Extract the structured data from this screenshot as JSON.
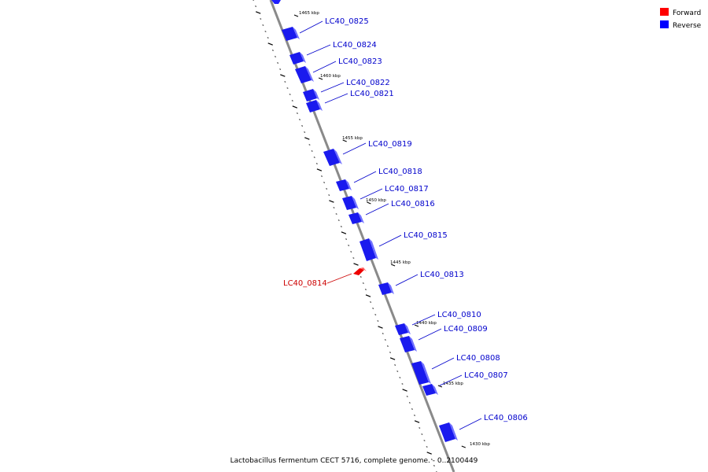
{
  "legend": {
    "forward": {
      "label": "Forward",
      "color": "#ff0000"
    },
    "reverse": {
      "label": "Reverse",
      "color": "#0000ff"
    }
  },
  "caption": "Lactobacillus fermentum CECT 5716, complete genome. - 0..2100449",
  "kbp_marks": [
    "1465 kbp",
    "1460 kbp",
    "1455 kbp",
    "1450 kbp",
    "1445 kbp",
    "1440 kbp",
    "1435 kbp",
    "1430 kbp"
  ],
  "genes": [
    {
      "id": "LC40_0825",
      "strand": "reverse"
    },
    {
      "id": "LC40_0824",
      "strand": "reverse"
    },
    {
      "id": "LC40_0823",
      "strand": "reverse"
    },
    {
      "id": "LC40_0822",
      "strand": "reverse"
    },
    {
      "id": "LC40_0821",
      "strand": "reverse"
    },
    {
      "id": "LC40_0819",
      "strand": "reverse"
    },
    {
      "id": "LC40_0818",
      "strand": "reverse"
    },
    {
      "id": "LC40_0817",
      "strand": "reverse"
    },
    {
      "id": "LC40_0816",
      "strand": "reverse"
    },
    {
      "id": "LC40_0815",
      "strand": "reverse"
    },
    {
      "id": "LC40_0814",
      "strand": "forward"
    },
    {
      "id": "LC40_0813",
      "strand": "reverse"
    },
    {
      "id": "LC40_0810",
      "strand": "reverse"
    },
    {
      "id": "LC40_0809",
      "strand": "reverse"
    },
    {
      "id": "LC40_0808",
      "strand": "reverse"
    },
    {
      "id": "LC40_0807",
      "strand": "reverse"
    },
    {
      "id": "LC40_0806",
      "strand": "reverse"
    }
  ]
}
